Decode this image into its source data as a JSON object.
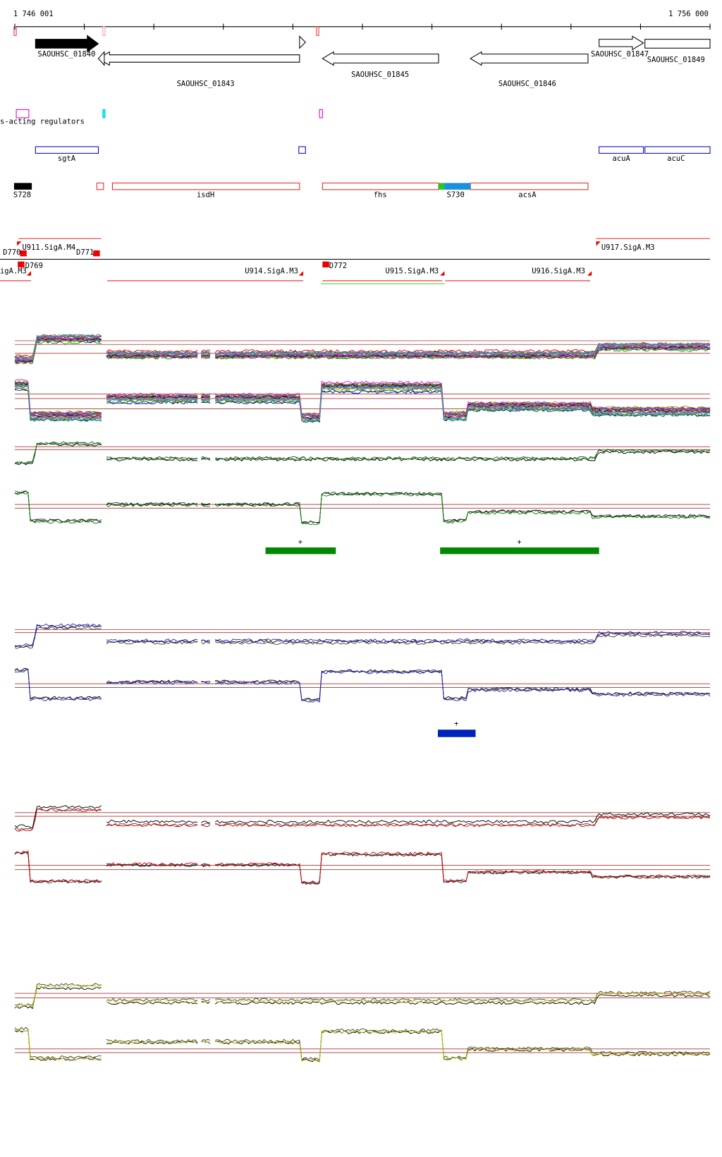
{
  "ruler": {
    "start": "1 746 001",
    "end": "1 756 000"
  },
  "genes": [
    "SAOUHSC_01840",
    "SAOUHSC_01843",
    "SAOUHSC_01845",
    "SAOUHSC_01846",
    "SAOUHSC_01847",
    "SAOUHSC_01849"
  ],
  "regulators": {
    "label": "s-acting regulators"
  },
  "annotations": [
    "sgtA",
    "acuA",
    "acuC"
  ],
  "features": [
    "S728",
    "isdH",
    "fhs",
    "S730",
    "acsA"
  ],
  "promoters": [
    "U911.SigA.M4",
    "D770",
    "D769",
    "D771",
    "U917.SigA.M3",
    "igA.M3",
    "U914.SigA.M3",
    "D772",
    "U915.SigA.M3",
    "U916.SigA.M3"
  ],
  "segments": {
    "green": [
      "+",
      "+"
    ],
    "blue": [
      "+"
    ]
  }
}
